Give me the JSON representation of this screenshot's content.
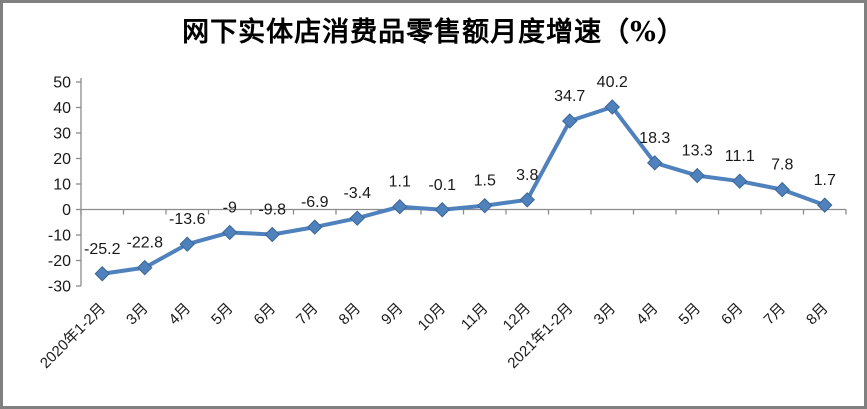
{
  "frame": {
    "border_color": "#808080",
    "background": "#FFFFFF"
  },
  "chart_data": {
    "type": "line",
    "title": "网下实体店消费品零售额月度增速（%）",
    "categories": [
      "2020年1-2月",
      "3月",
      "4月",
      "5月",
      "6月",
      "7月",
      "8月",
      "9月",
      "10月",
      "11月",
      "12月",
      "2021年1-2月",
      "3月",
      "4月",
      "5月",
      "6月",
      "7月",
      "8月"
    ],
    "values": [
      -25.2,
      -22.8,
      -13.6,
      -9,
      -9.8,
      -6.9,
      -3.4,
      1.1,
      -0.1,
      1.5,
      3.8,
      34.7,
      40.2,
      18.3,
      13.3,
      11.1,
      7.8,
      1.7
    ],
    "data_labels": [
      "-25.2",
      "-22.8",
      "-13.6",
      "-9",
      "-9.8",
      "-6.9",
      "-3.4",
      "1.1",
      "-0.1",
      "1.5",
      "3.8",
      "34.7",
      "40.2",
      "18.3",
      "13.3",
      "11.1",
      "7.8",
      "1.7"
    ],
    "xlabel": "",
    "ylabel": "",
    "ylim": [
      -30,
      50
    ],
    "y_ticks": [
      50,
      40,
      30,
      20,
      10,
      0,
      -10,
      -20,
      -30
    ],
    "grid": false,
    "legend": "none",
    "marker": "diamond",
    "x_label_rotation": -45,
    "series_color": "#4F81BD",
    "marker_edge_color": "#3A6596",
    "axis_color": "#8C8C8C",
    "text_color": "#1A1A1A"
  }
}
